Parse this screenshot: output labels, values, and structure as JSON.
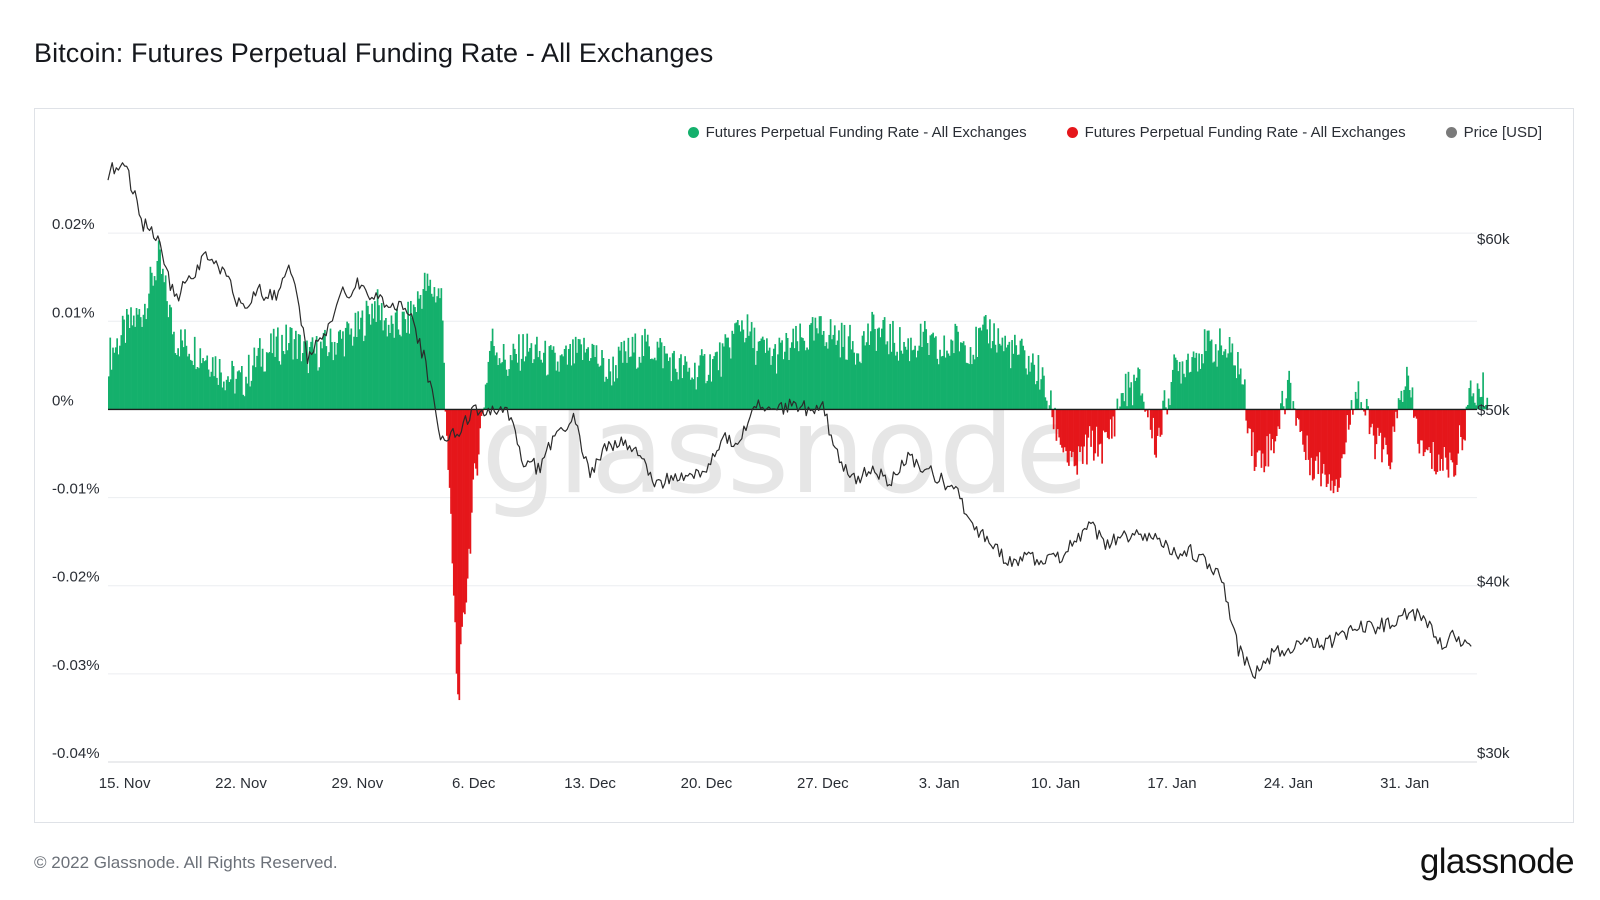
{
  "title": "Bitcoin: Futures Perpetual Funding Rate - All Exchanges",
  "footer": {
    "copyright": "© 2022 Glassnode. All Rights Reserved.",
    "logo": "glassnode"
  },
  "watermark": "glassnode",
  "colors": {
    "positive": "#14b06c",
    "negative": "#e5161b",
    "price": "#2b2b2b",
    "grid": "#eceef1"
  },
  "legend": [
    {
      "label": "Futures Perpetual Funding Rate - All Exchanges",
      "color": "#14b06c"
    },
    {
      "label": "Futures Perpetual Funding Rate - All Exchanges",
      "color": "#e5161b"
    },
    {
      "label": "Price [USD]",
      "color": "#7a7a7a"
    }
  ],
  "chart_data": {
    "type": "area",
    "x_range": [
      "2021-11-14",
      "2022-02-04"
    ],
    "xticks": [
      {
        "date": "2021-11-15",
        "label": "15. Nov"
      },
      {
        "date": "2021-11-22",
        "label": "22. Nov"
      },
      {
        "date": "2021-11-29",
        "label": "29. Nov"
      },
      {
        "date": "2021-12-06",
        "label": "6. Dec"
      },
      {
        "date": "2021-12-13",
        "label": "13. Dec"
      },
      {
        "date": "2021-12-20",
        "label": "20. Dec"
      },
      {
        "date": "2021-12-27",
        "label": "27. Dec"
      },
      {
        "date": "2022-01-03",
        "label": "3. Jan"
      },
      {
        "date": "2022-01-10",
        "label": "10. Jan"
      },
      {
        "date": "2022-01-17",
        "label": "17. Jan"
      },
      {
        "date": "2022-01-24",
        "label": "24. Jan"
      },
      {
        "date": "2022-01-31",
        "label": "31. Jan"
      }
    ],
    "y_left": {
      "range": [
        -0.04,
        0.03
      ],
      "ticks": [
        {
          "value": 0.02,
          "label": "0.02%"
        },
        {
          "value": 0.01,
          "label": "0.01%"
        },
        {
          "value": 0,
          "label": "0%"
        },
        {
          "value": -0.01,
          "label": "-0.01%"
        },
        {
          "value": -0.02,
          "label": "-0.02%"
        },
        {
          "value": -0.03,
          "label": "-0.03%"
        },
        {
          "value": -0.04,
          "label": "-0.04%"
        }
      ]
    },
    "y_right": {
      "range": [
        30000,
        66000
      ],
      "ticks": [
        {
          "value": 60000,
          "label": "$60k"
        },
        {
          "value": 50000,
          "label": "$50k"
        },
        {
          "value": 40000,
          "label": "$40k"
        },
        {
          "value": 30000,
          "label": "$30k"
        }
      ]
    },
    "series": [
      {
        "name": "Futures Perpetual Funding Rate - All Exchanges",
        "axis": "left",
        "points": [
          [
            "2021-11-14",
            0.006
          ],
          [
            "2021-11-15",
            0.009
          ],
          [
            "2021-11-16",
            0.011
          ],
          [
            "2021-11-17",
            0.017
          ],
          [
            "2021-11-18",
            0.008
          ],
          [
            "2021-11-19",
            0.007
          ],
          [
            "2021-11-20",
            0.006
          ],
          [
            "2021-11-21",
            0.004
          ],
          [
            "2021-11-22",
            0.003
          ],
          [
            "2021-11-23",
            0.006
          ],
          [
            "2021-11-24",
            0.007
          ],
          [
            "2021-11-25",
            0.008
          ],
          [
            "2021-11-26",
            0.006
          ],
          [
            "2021-11-27",
            0.007
          ],
          [
            "2021-11-28",
            0.008
          ],
          [
            "2021-11-29",
            0.009
          ],
          [
            "2021-11-30",
            0.012
          ],
          [
            "2021-12-01",
            0.009
          ],
          [
            "2021-12-02",
            0.01
          ],
          [
            "2021-12-03",
            0.014
          ],
          [
            "2021-12-04",
            0.013
          ],
          [
            "2021-12-05",
            -0.033
          ],
          [
            "2021-12-06",
            -0.008
          ],
          [
            "2021-12-07",
            0.008
          ],
          [
            "2021-12-08",
            0.005
          ],
          [
            "2021-12-09",
            0.007
          ],
          [
            "2021-12-10",
            0.006
          ],
          [
            "2021-12-11",
            0.005
          ],
          [
            "2021-12-12",
            0.006
          ],
          [
            "2021-12-13",
            0.007
          ],
          [
            "2021-12-14",
            0.004
          ],
          [
            "2021-12-15",
            0.006
          ],
          [
            "2021-12-16",
            0.007
          ],
          [
            "2021-12-17",
            0.007
          ],
          [
            "2021-12-18",
            0.005
          ],
          [
            "2021-12-19",
            0.004
          ],
          [
            "2021-12-20",
            0.005
          ],
          [
            "2021-12-21",
            0.006
          ],
          [
            "2021-12-22",
            0.01
          ],
          [
            "2021-12-23",
            0.007
          ],
          [
            "2021-12-24",
            0.006
          ],
          [
            "2021-12-25",
            0.007
          ],
          [
            "2021-12-26",
            0.008
          ],
          [
            "2021-12-27",
            0.009
          ],
          [
            "2021-12-28",
            0.008
          ],
          [
            "2021-12-29",
            0.007
          ],
          [
            "2021-12-30",
            0.009
          ],
          [
            "2021-12-31",
            0.008
          ],
          [
            "2022-01-01",
            0.007
          ],
          [
            "2022-01-02",
            0.008
          ],
          [
            "2022-01-03",
            0.006
          ],
          [
            "2022-01-04",
            0.008
          ],
          [
            "2022-01-05",
            0.007
          ],
          [
            "2022-01-06",
            0.009
          ],
          [
            "2022-01-07",
            0.007
          ],
          [
            "2022-01-08",
            0.006
          ],
          [
            "2022-01-09",
            0.004
          ],
          [
            "2022-01-10",
            -0.002
          ],
          [
            "2022-01-11",
            -0.007
          ],
          [
            "2022-01-12",
            -0.004
          ],
          [
            "2022-01-13",
            -0.004
          ],
          [
            "2022-01-14",
            0.002
          ],
          [
            "2022-01-15",
            0.003
          ],
          [
            "2022-01-16",
            -0.004
          ],
          [
            "2022-01-17",
            0.004
          ],
          [
            "2022-01-18",
            0.006
          ],
          [
            "2022-01-19",
            0.007
          ],
          [
            "2022-01-20",
            0.007
          ],
          [
            "2022-01-21",
            0.005
          ],
          [
            "2022-01-22",
            -0.006
          ],
          [
            "2022-01-23",
            -0.004
          ],
          [
            "2022-01-24",
            0.003
          ],
          [
            "2022-01-25",
            -0.005
          ],
          [
            "2022-01-26",
            -0.007
          ],
          [
            "2022-01-27",
            -0.008
          ],
          [
            "2022-01-28",
            0.003
          ],
          [
            "2022-01-29",
            -0.003
          ],
          [
            "2022-01-30",
            -0.006
          ],
          [
            "2022-01-31",
            0.004
          ],
          [
            "2022-02-01",
            -0.005
          ],
          [
            "2022-02-02",
            -0.006
          ],
          [
            "2022-02-03",
            -0.006
          ],
          [
            "2022-02-04",
            0.002
          ]
        ]
      },
      {
        "name": "Price [USD]",
        "axis": "right",
        "points": [
          [
            "2021-11-14",
            64400
          ],
          [
            "2021-11-15",
            65200
          ],
          [
            "2021-11-16",
            61500
          ],
          [
            "2021-11-17",
            60500
          ],
          [
            "2021-11-18",
            57000
          ],
          [
            "2021-11-19",
            58200
          ],
          [
            "2021-11-20",
            59600
          ],
          [
            "2021-11-21",
            58700
          ],
          [
            "2021-11-22",
            56400
          ],
          [
            "2021-11-23",
            57500
          ],
          [
            "2021-11-24",
            57100
          ],
          [
            "2021-11-25",
            58900
          ],
          [
            "2021-11-26",
            53700
          ],
          [
            "2021-11-27",
            54700
          ],
          [
            "2021-11-28",
            57200
          ],
          [
            "2021-11-29",
            57800
          ],
          [
            "2021-11-30",
            57000
          ],
          [
            "2021-12-01",
            56900
          ],
          [
            "2021-12-02",
            56500
          ],
          [
            "2021-12-03",
            53600
          ],
          [
            "2021-12-04",
            49100
          ],
          [
            "2021-12-05",
            49300
          ],
          [
            "2021-12-06",
            50500
          ],
          [
            "2021-12-07",
            50600
          ],
          [
            "2021-12-08",
            50400
          ],
          [
            "2021-12-09",
            47600
          ],
          [
            "2021-12-10",
            47100
          ],
          [
            "2021-12-11",
            49300
          ],
          [
            "2021-12-12",
            50100
          ],
          [
            "2021-12-13",
            46700
          ],
          [
            "2021-12-14",
            48400
          ],
          [
            "2021-12-15",
            48900
          ],
          [
            "2021-12-16",
            47600
          ],
          [
            "2021-12-17",
            46200
          ],
          [
            "2021-12-18",
            46800
          ],
          [
            "2021-12-19",
            46700
          ],
          [
            "2021-12-20",
            46900
          ],
          [
            "2021-12-21",
            48900
          ],
          [
            "2021-12-22",
            48600
          ],
          [
            "2021-12-23",
            50800
          ],
          [
            "2021-12-24",
            50400
          ],
          [
            "2021-12-25",
            50800
          ],
          [
            "2021-12-26",
            50600
          ],
          [
            "2021-12-27",
            50700
          ],
          [
            "2021-12-28",
            47500
          ],
          [
            "2021-12-29",
            46500
          ],
          [
            "2021-12-30",
            47100
          ],
          [
            "2021-12-31",
            46300
          ],
          [
            "2022-01-01",
            47700
          ],
          [
            "2022-01-02",
            47300
          ],
          [
            "2022-01-03",
            46500
          ],
          [
            "2022-01-04",
            45900
          ],
          [
            "2022-01-05",
            43500
          ],
          [
            "2022-01-06",
            43100
          ],
          [
            "2022-01-07",
            41600
          ],
          [
            "2022-01-08",
            41800
          ],
          [
            "2022-01-09",
            41900
          ],
          [
            "2022-01-10",
            41800
          ],
          [
            "2022-01-11",
            42700
          ],
          [
            "2022-01-12",
            43900
          ],
          [
            "2022-01-13",
            42600
          ],
          [
            "2022-01-14",
            43100
          ],
          [
            "2022-01-15",
            43200
          ],
          [
            "2022-01-16",
            43100
          ],
          [
            "2022-01-17",
            42200
          ],
          [
            "2022-01-18",
            42400
          ],
          [
            "2022-01-19",
            41700
          ],
          [
            "2022-01-20",
            40700
          ],
          [
            "2022-01-21",
            36500
          ],
          [
            "2022-01-22",
            35100
          ],
          [
            "2022-01-23",
            36300
          ],
          [
            "2022-01-24",
            36700
          ],
          [
            "2022-01-25",
            36900
          ],
          [
            "2022-01-26",
            36800
          ],
          [
            "2022-01-27",
            37200
          ],
          [
            "2022-01-28",
            37700
          ],
          [
            "2022-01-29",
            37900
          ],
          [
            "2022-01-30",
            38000
          ],
          [
            "2022-01-31",
            38500
          ],
          [
            "2022-02-01",
            38700
          ],
          [
            "2022-02-02",
            36900
          ],
          [
            "2022-02-03",
            37300
          ],
          [
            "2022-02-04",
            37000
          ]
        ]
      }
    ],
    "grid": true,
    "legend_position": "top-right"
  }
}
